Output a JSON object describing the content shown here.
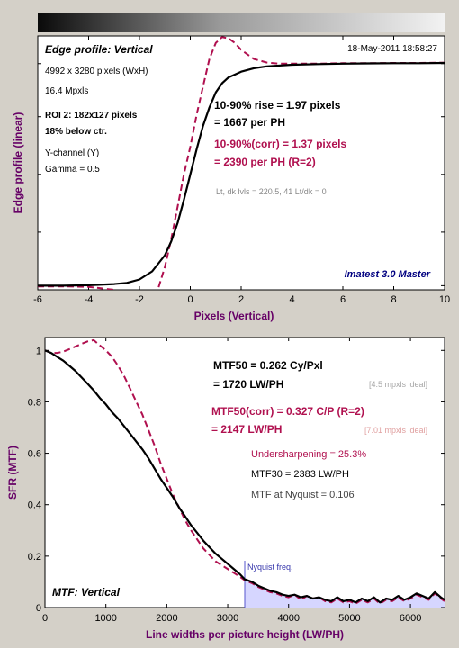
{
  "colors": {
    "background": "#d4d0c8",
    "plot_bg": "#ffffff",
    "black_curve": "#000000",
    "corrected_curve": "#b0104f",
    "axis_label": "#660066",
    "brand": "#000080",
    "nyquist": "#5555cc",
    "nyquist_fill": "#d6d6ff",
    "faint_text": "#a8a8a8",
    "faint_red": "#e0a0a0"
  },
  "chart_data": [
    {
      "type": "line",
      "title": "Edge profile: Vertical",
      "timestamp": "18-May-2011 18:58:27",
      "xlabel": "Pixels (Vertical)",
      "ylabel": "Edge profile (linear)",
      "xlim": [
        -6,
        10
      ],
      "ylim": [
        0,
        1.1
      ],
      "xticks": [
        -6,
        -4,
        -2,
        0,
        2,
        4,
        6,
        8,
        10
      ],
      "grid": false,
      "info_left": [
        {
          "text": "4992 x 3280 pixels (WxH)",
          "bold": false
        },
        {
          "text": "16.4 Mpxls",
          "bold": false
        },
        {
          "text": "ROI 2:  182x127 pixels",
          "bold": true
        },
        {
          "text": "18% below ctr.",
          "bold": true
        },
        {
          "text": "Y-channel  (Y)",
          "bold": false
        },
        {
          "text": "Gamma = 0.5",
          "bold": false
        }
      ],
      "rise_line1": "10-90% rise = 1.97 pixels",
      "rise_line2": "= 1667 per PH",
      "corr_line1": "10-90%(corr) = 1.37 pixels",
      "corr_line2": "= 2390 per PH  (R=2)",
      "levels": "Lt, dk lvls = 220.5, 41   Lt/dk = 0",
      "brand": "Imatest 3.0 Master",
      "series": [
        {
          "style": "solid",
          "x": [
            -6,
            -5,
            -4,
            -3,
            -2.5,
            -2,
            -1.5,
            -1,
            -0.75,
            -0.5,
            -0.25,
            0,
            0.25,
            0.5,
            0.75,
            1,
            1.25,
            1.5,
            2,
            2.5,
            3,
            4,
            5,
            6,
            7,
            8,
            9,
            10
          ],
          "y": [
            0.018,
            0.018,
            0.02,
            0.025,
            0.03,
            0.045,
            0.08,
            0.15,
            0.21,
            0.29,
            0.39,
            0.5,
            0.61,
            0.71,
            0.79,
            0.855,
            0.895,
            0.92,
            0.945,
            0.96,
            0.968,
            0.975,
            0.978,
            0.98,
            0.981,
            0.982,
            0.982,
            0.983
          ]
        },
        {
          "style": "dashed",
          "x": [
            -6,
            -5,
            -4,
            -3,
            -2.5,
            -2,
            -1.75,
            -1.5,
            -1.25,
            -1,
            -0.75,
            -0.5,
            -0.25,
            0,
            0.25,
            0.5,
            0.75,
            1,
            1.25,
            1.5,
            1.75,
            2,
            2.5,
            3,
            3.5,
            4,
            5,
            6,
            7,
            8,
            9,
            10
          ],
          "y": [
            0.015,
            0.015,
            0.013,
            0.0,
            -0.02,
            -0.04,
            -0.045,
            -0.03,
            0.01,
            0.1,
            0.22,
            0.36,
            0.5,
            0.62,
            0.76,
            0.88,
            1.0,
            1.07,
            1.095,
            1.09,
            1.07,
            1.04,
            1.0,
            0.985,
            0.98,
            0.98,
            0.98,
            0.982,
            0.982,
            0.983,
            0.983,
            0.984
          ]
        }
      ]
    },
    {
      "type": "line",
      "title": "MTF: Vertical",
      "xlabel": "Line widths per picture height (LW/PH)",
      "ylabel": "SFR (MTF)",
      "xlim": [
        0,
        6560
      ],
      "ylim": [
        0,
        1.05
      ],
      "xticks": [
        0,
        1000,
        2000,
        3000,
        4000,
        5000,
        6000
      ],
      "yticks": [
        0,
        0.2,
        0.4,
        0.6,
        0.8,
        1
      ],
      "grid": false,
      "mtf50_line1": "MTF50 = 0.262 Cy/Pxl",
      "mtf50_line2": "= 1720 LW/PH",
      "mtf50_ideal": "[4.5 mpxls ideal]",
      "mtf50c_line1": "MTF50(corr) = 0.327 C/P  (R=2)",
      "mtf50c_line2": "= 2147 LW/PH",
      "mtf50c_ideal": "[7.01 mpxls ideal]",
      "undersharpening": "Undersharpening = 25.3%",
      "mtf30": "MTF30 = 2383 LW/PH",
      "nyquist_mtf": "MTF at Nyquist = 0.106",
      "nyquist_label": "Nyquist freq.",
      "nyquist_x": 3280,
      "series": [
        {
          "style": "solid",
          "x": [
            0,
            100,
            200,
            300,
            400,
            500,
            600,
            700,
            800,
            900,
            1000,
            1100,
            1200,
            1300,
            1400,
            1500,
            1600,
            1700,
            1800,
            1900,
            2000,
            2100,
            2200,
            2300,
            2400,
            2500,
            2600,
            2700,
            2800,
            2900,
            3000,
            3100,
            3200,
            3280,
            3400,
            3500,
            3600,
            3700,
            3800,
            3900,
            4000,
            4100,
            4200,
            4300,
            4400,
            4500,
            4600,
            4700,
            4800,
            4900,
            5000,
            5100,
            5200,
            5300,
            5400,
            5500,
            5600,
            5700,
            5800,
            5900,
            6000,
            6100,
            6200,
            6300,
            6400,
            6500,
            6560
          ],
          "y": [
            1.0,
            0.99,
            0.975,
            0.96,
            0.94,
            0.92,
            0.895,
            0.87,
            0.845,
            0.815,
            0.79,
            0.76,
            0.735,
            0.705,
            0.675,
            0.645,
            0.615,
            0.58,
            0.54,
            0.5,
            0.465,
            0.43,
            0.39,
            0.355,
            0.32,
            0.29,
            0.26,
            0.235,
            0.21,
            0.19,
            0.17,
            0.15,
            0.13,
            0.11,
            0.1,
            0.085,
            0.075,
            0.065,
            0.06,
            0.05,
            0.045,
            0.05,
            0.04,
            0.045,
            0.035,
            0.04,
            0.03,
            0.025,
            0.04,
            0.025,
            0.03,
            0.02,
            0.035,
            0.025,
            0.04,
            0.02,
            0.035,
            0.03,
            0.045,
            0.03,
            0.04,
            0.055,
            0.045,
            0.035,
            0.06,
            0.04,
            0.03
          ]
        },
        {
          "style": "dashed",
          "x": [
            0,
            100,
            200,
            300,
            400,
            500,
            600,
            700,
            800,
            900,
            1000,
            1100,
            1200,
            1300,
            1400,
            1500,
            1600,
            1700,
            1800,
            1900,
            2000,
            2100,
            2200,
            2300,
            2400,
            2500,
            2600,
            2700,
            2800,
            2900,
            3000,
            3100,
            3200,
            3280,
            3400,
            3500,
            3600,
            3700,
            3800,
            3900,
            4000,
            4100,
            4200,
            4300,
            4400,
            4500,
            4600,
            4700,
            4800,
            4900,
            5000,
            5100,
            5200,
            5300,
            5400,
            5500,
            5600,
            5700,
            5800,
            5900,
            6000,
            6100,
            6200,
            6300,
            6400,
            6500,
            6560
          ],
          "y": [
            1.0,
            0.99,
            0.99,
            0.995,
            1.005,
            1.015,
            1.025,
            1.035,
            1.04,
            1.02,
            1.0,
            0.975,
            0.94,
            0.9,
            0.85,
            0.8,
            0.75,
            0.69,
            0.63,
            0.56,
            0.5,
            0.44,
            0.39,
            0.34,
            0.3,
            0.265,
            0.23,
            0.205,
            0.18,
            0.165,
            0.15,
            0.135,
            0.12,
            0.106,
            0.095,
            0.08,
            0.07,
            0.06,
            0.055,
            0.045,
            0.04,
            0.05,
            0.03,
            0.045,
            0.035,
            0.04,
            0.025,
            0.02,
            0.035,
            0.02,
            0.025,
            0.015,
            0.03,
            0.02,
            0.035,
            0.015,
            0.03,
            0.025,
            0.04,
            0.025,
            0.035,
            0.05,
            0.04,
            0.03,
            0.055,
            0.035,
            0.025
          ]
        }
      ]
    }
  ]
}
